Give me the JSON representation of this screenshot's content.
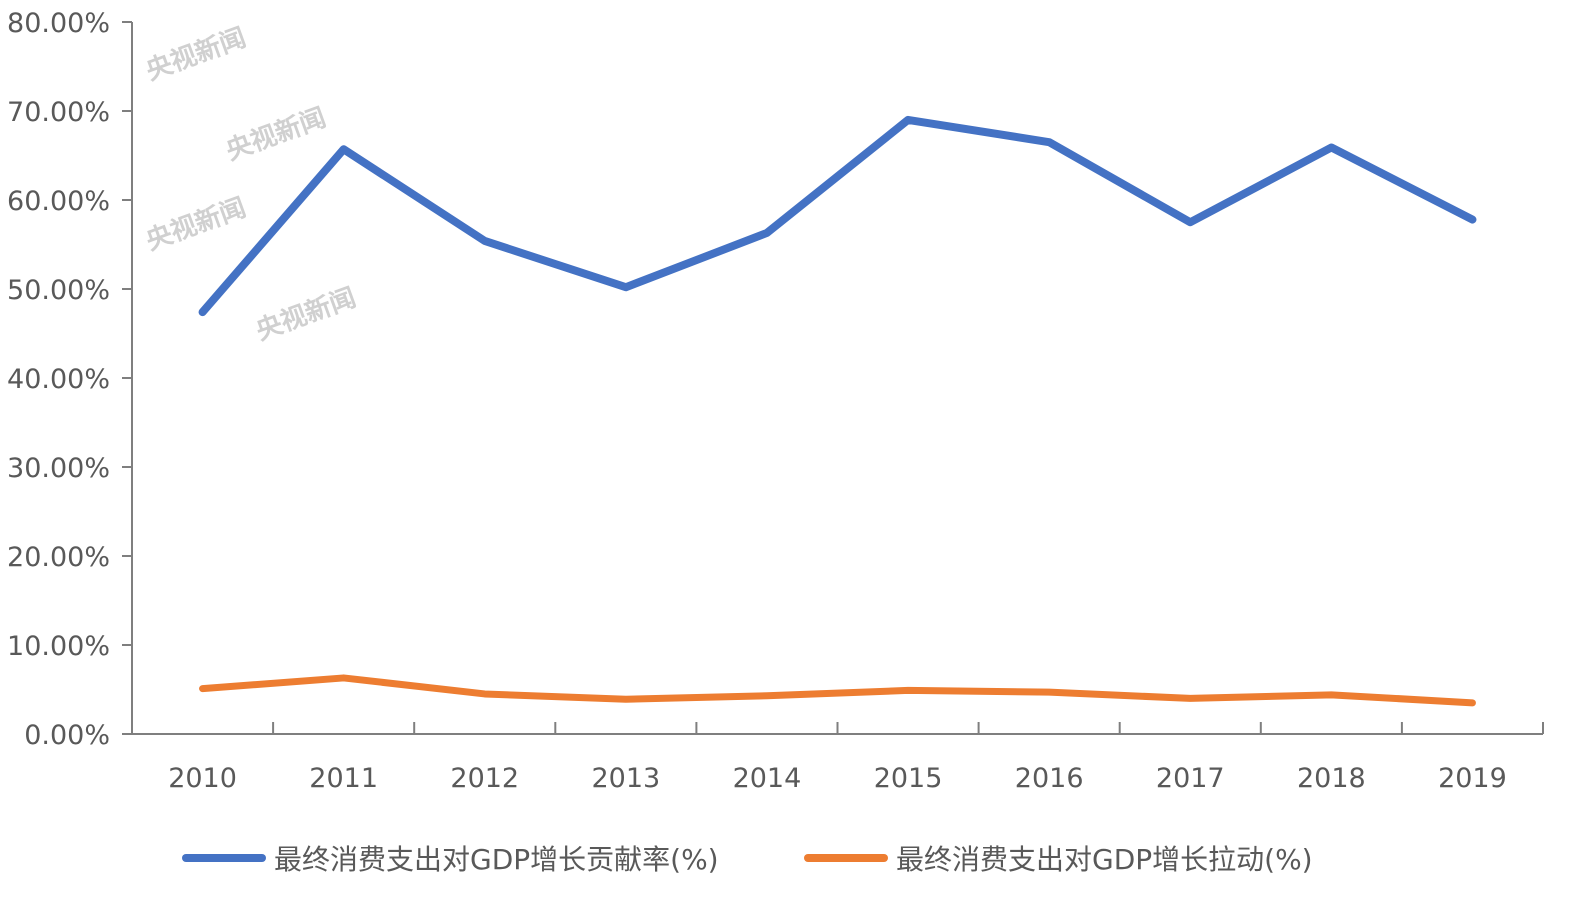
{
  "chart_data": {
    "type": "line",
    "categories": [
      "2010",
      "2011",
      "2012",
      "2013",
      "2014",
      "2015",
      "2016",
      "2017",
      "2018",
      "2019"
    ],
    "series": [
      {
        "name": "最终消费支出对GDP增长贡献率(%)",
        "color": "#4472C4",
        "values": [
          47.4,
          65.7,
          55.4,
          50.2,
          56.3,
          69.0,
          66.5,
          57.5,
          65.9,
          57.8
        ]
      },
      {
        "name": "最终消费支出对GDP增长拉动(%)",
        "color": "#ED7D31",
        "values": [
          5.1,
          6.3,
          4.5,
          3.9,
          4.3,
          4.9,
          4.7,
          4.0,
          4.4,
          3.5
        ]
      }
    ],
    "yticks": [
      "0.00%",
      "10.00%",
      "20.00%",
      "30.00%",
      "40.00%",
      "50.00%",
      "60.00%",
      "70.00%",
      "80.00%"
    ],
    "ylim": [
      0,
      80
    ],
    "grid": false,
    "legend": "bottom",
    "title": "",
    "xlabel": "",
    "ylabel": ""
  },
  "watermark": "央视新闻"
}
